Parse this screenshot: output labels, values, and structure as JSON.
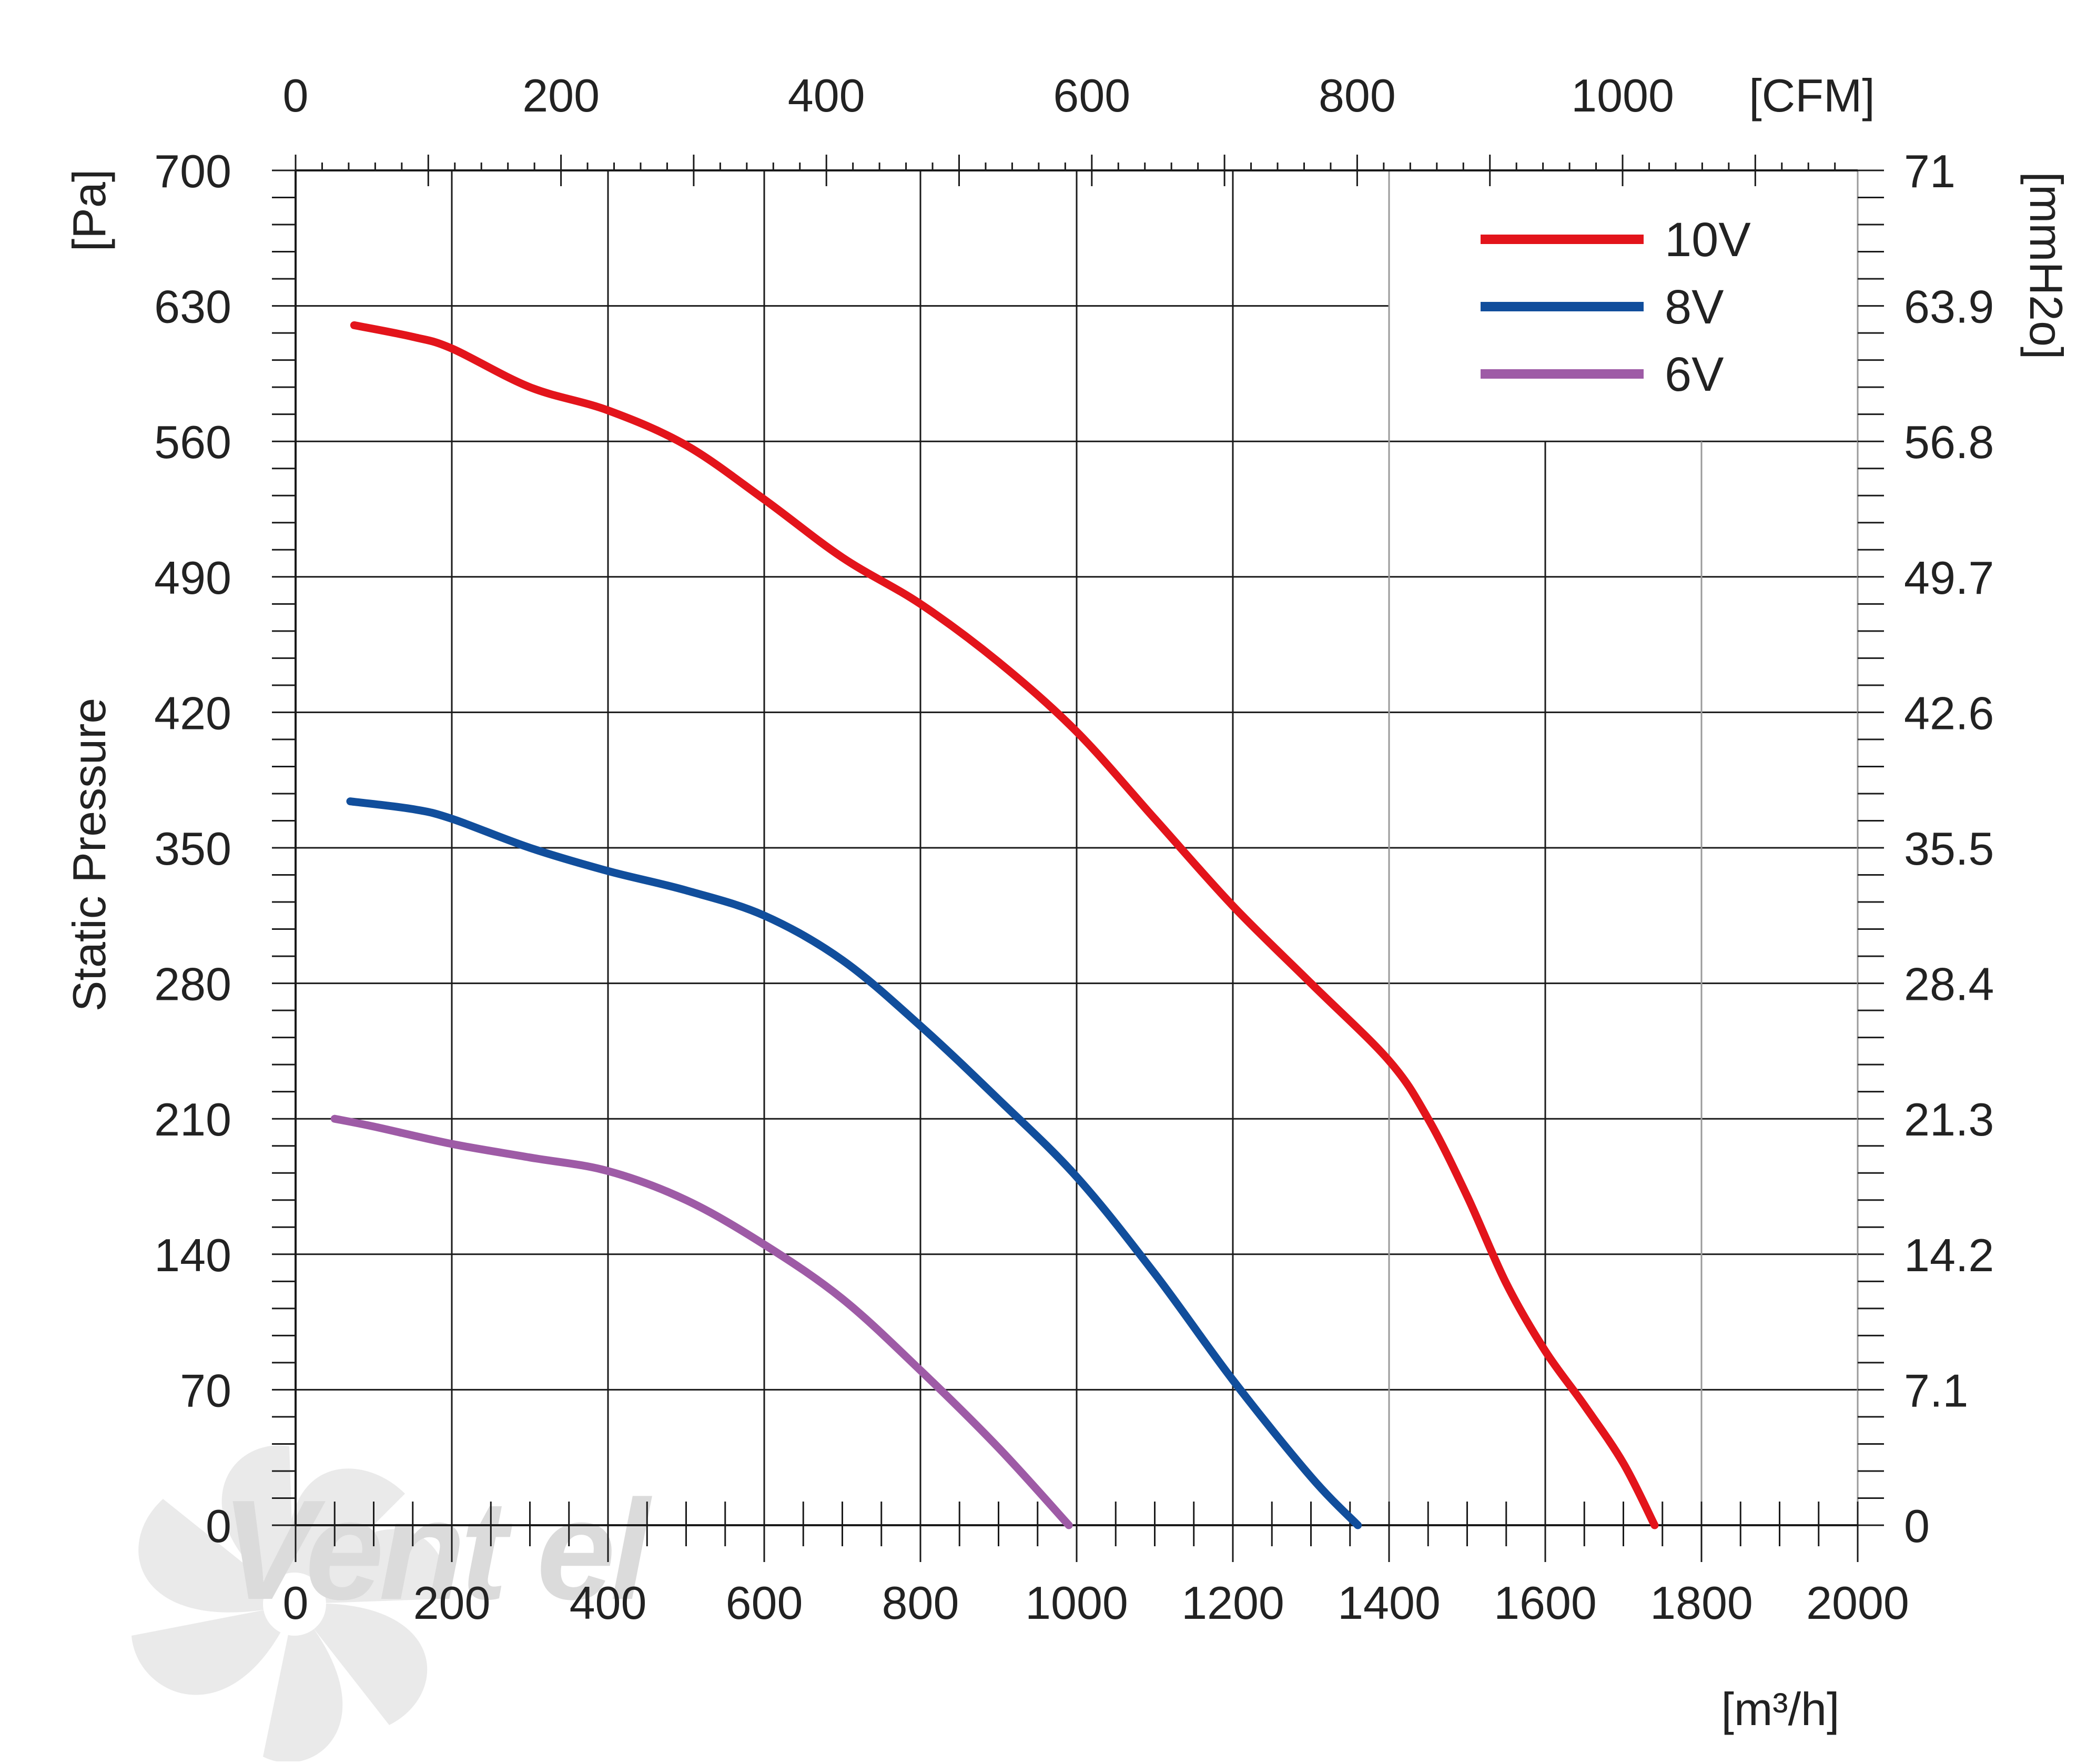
{
  "chart_data": {
    "type": "line",
    "title": "",
    "ylabel": "Static Pressure",
    "y_unit_left": "[Pa]",
    "y_unit_right": "[mmH2o]",
    "x_unit_bottom": "[m³/h]",
    "x_unit_top": "[CFM]",
    "xlim": [
      0,
      2000
    ],
    "ylim": [
      0,
      700
    ],
    "grid": true,
    "legend_position": "top-right",
    "x_ticks_bottom": [
      "0",
      "200",
      "400",
      "600",
      "800",
      "1000",
      "1200",
      "1400",
      "1600",
      "1800",
      "2000"
    ],
    "x_ticks_top": [
      {
        "label": "0",
        "value": 0
      },
      {
        "label": "200",
        "value": 200
      },
      {
        "label": "400",
        "value": 400
      },
      {
        "label": "600",
        "value": 600
      },
      {
        "label": "800",
        "value": 800
      },
      {
        "label": "1000",
        "value": 1000
      }
    ],
    "y_ticks_left": [
      "0",
      "70",
      "140",
      "210",
      "280",
      "350",
      "420",
      "490",
      "560",
      "630",
      "700"
    ],
    "y_ticks_right": [
      "0",
      "7.1",
      "14.2",
      "21.3",
      "28.4",
      "35.5",
      "42.6",
      "49.7",
      "56.8",
      "63.9",
      "71"
    ],
    "series": [
      {
        "name": "10V",
        "color": "#e3141b",
        "x": [
          75,
          150,
          200,
          300,
          400,
          500,
          600,
          700,
          800,
          900,
          1000,
          1100,
          1200,
          1300,
          1400,
          1450,
          1500,
          1550,
          1600,
          1650,
          1700,
          1740
        ],
        "y": [
          620,
          614,
          608,
          588,
          576,
          558,
          530,
          500,
          476,
          446,
          410,
          365,
          320,
          280,
          240,
          210,
          170,
          125,
          90,
          62,
          32,
          0
        ]
      },
      {
        "name": "8V",
        "color": "#114e9c",
        "x": [
          70,
          150,
          200,
          300,
          400,
          500,
          600,
          700,
          800,
          900,
          1000,
          1100,
          1200,
          1300,
          1360
        ],
        "y": [
          374,
          370,
          365,
          350,
          338,
          328,
          315,
          292,
          258,
          220,
          180,
          130,
          75,
          25,
          0
        ]
      },
      {
        "name": "6V",
        "color": "#9e5ba6",
        "x": [
          50,
          100,
          200,
          300,
          400,
          500,
          600,
          700,
          800,
          900,
          990
        ],
        "y": [
          210,
          206,
          197,
          190,
          183,
          168,
          145,
          117,
          80,
          40,
          0
        ]
      }
    ]
  },
  "watermark": "Vent el"
}
